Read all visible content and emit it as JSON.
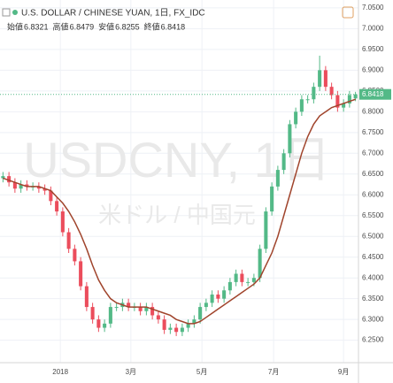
{
  "chart_data": {
    "type": "candlestick",
    "title": "U.S. DOLLAR / CHINESE YUAN, 1日, FX_IDC",
    "ohlc_labels": [
      "始値",
      "高値",
      "安値",
      "終値"
    ],
    "watermark": "USDCNY, 1日",
    "watermark_sub": "米ドル / 中国元",
    "up_color": "#53b987",
    "down_color": "#eb4d5c",
    "x": [
      0,
      1,
      2,
      3,
      4,
      5,
      6,
      7,
      8,
      9,
      10,
      11,
      12,
      13,
      14,
      15,
      16,
      17,
      18,
      19,
      20,
      21,
      22,
      23,
      24,
      25,
      26,
      27,
      28,
      29,
      30,
      31,
      32,
      33,
      34,
      35,
      36,
      37,
      38,
      39,
      40,
      41,
      42,
      43,
      44,
      45,
      46,
      47,
      48,
      49,
      50,
      51,
      52,
      53,
      54,
      55,
      56,
      57,
      58,
      59
    ],
    "open": [
      6.64,
      6.645,
      6.63,
      6.615,
      6.625,
      6.62,
      6.62,
      6.615,
      6.61,
      6.585,
      6.56,
      6.51,
      6.47,
      6.44,
      6.38,
      6.33,
      6.3,
      6.28,
      6.29,
      6.33,
      6.33,
      6.34,
      6.33,
      6.33,
      6.32,
      6.33,
      6.31,
      6.3,
      6.275,
      6.28,
      6.27,
      6.28,
      6.29,
      6.3,
      6.33,
      6.34,
      6.36,
      6.35,
      6.37,
      6.39,
      6.41,
      6.39,
      6.39,
      6.4,
      6.47,
      6.56,
      6.62,
      6.66,
      6.7,
      6.77,
      6.8,
      6.83,
      6.83,
      6.86,
      6.9,
      6.86,
      6.84,
      6.81,
      6.82,
      6.8321
    ],
    "high": [
      6.655,
      6.655,
      6.64,
      6.635,
      6.635,
      6.63,
      6.63,
      6.625,
      6.62,
      6.595,
      6.57,
      6.52,
      6.48,
      6.45,
      6.39,
      6.34,
      6.31,
      6.3,
      6.34,
      6.34,
      6.35,
      6.35,
      6.34,
      6.34,
      6.34,
      6.34,
      6.32,
      6.31,
      6.29,
      6.29,
      6.29,
      6.3,
      6.31,
      6.34,
      6.35,
      6.37,
      6.37,
      6.38,
      6.4,
      6.42,
      6.42,
      6.4,
      6.41,
      6.48,
      6.57,
      6.63,
      6.67,
      6.71,
      6.78,
      6.81,
      6.84,
      6.84,
      6.87,
      6.935,
      6.91,
      6.87,
      6.85,
      6.83,
      6.85,
      6.8479
    ],
    "low": [
      6.63,
      6.62,
      6.605,
      6.605,
      6.61,
      6.61,
      6.605,
      6.6,
      6.575,
      6.55,
      6.5,
      6.46,
      6.43,
      6.37,
      6.32,
      6.29,
      6.27,
      6.27,
      6.28,
      6.32,
      6.32,
      6.32,
      6.32,
      6.31,
      6.31,
      6.3,
      6.29,
      6.265,
      6.265,
      6.26,
      6.26,
      6.27,
      6.28,
      6.29,
      6.32,
      6.33,
      6.34,
      6.34,
      6.36,
      6.38,
      6.38,
      6.38,
      6.38,
      6.39,
      6.46,
      6.55,
      6.61,
      6.65,
      6.69,
      6.76,
      6.79,
      6.82,
      6.82,
      6.85,
      6.85,
      6.83,
      6.8,
      6.8,
      6.81,
      6.8255
    ],
    "close": [
      6.645,
      6.63,
      6.615,
      6.625,
      6.62,
      6.62,
      6.615,
      6.61,
      6.585,
      6.56,
      6.51,
      6.47,
      6.44,
      6.38,
      6.33,
      6.3,
      6.28,
      6.29,
      6.33,
      6.33,
      6.34,
      6.33,
      6.33,
      6.32,
      6.33,
      6.31,
      6.3,
      6.275,
      6.28,
      6.27,
      6.28,
      6.29,
      6.3,
      6.33,
      6.34,
      6.36,
      6.35,
      6.37,
      6.39,
      6.41,
      6.39,
      6.39,
      6.4,
      6.47,
      6.56,
      6.62,
      6.66,
      6.7,
      6.77,
      6.8,
      6.83,
      6.83,
      6.86,
      6.9,
      6.86,
      6.84,
      6.81,
      6.82,
      6.84,
      6.8418
    ],
    "ma": {
      "color": "#a0442c",
      "values": [
        6.64,
        6.635,
        6.63,
        6.625,
        6.62,
        6.62,
        6.62,
        6.615,
        6.61,
        6.595,
        6.58,
        6.56,
        6.535,
        6.505,
        6.47,
        6.43,
        6.395,
        6.37,
        6.35,
        6.34,
        6.335,
        6.33,
        6.33,
        6.33,
        6.33,
        6.325,
        6.32,
        6.315,
        6.31,
        6.3,
        6.295,
        6.29,
        6.29,
        6.295,
        6.305,
        6.315,
        6.325,
        6.335,
        6.345,
        6.355,
        6.365,
        6.375,
        6.385,
        6.4,
        6.43,
        6.46,
        6.5,
        6.55,
        6.6,
        6.65,
        6.7,
        6.74,
        6.77,
        6.79,
        6.8,
        6.81,
        6.815,
        6.82,
        6.825,
        6.83
      ]
    },
    "xlim": [
      -0.5,
      59.5
    ],
    "xticks": [
      {
        "value": 9.6,
        "label": "2018"
      },
      {
        "value": 21.4,
        "label": "3月"
      },
      {
        "value": 33.3,
        "label": "5月"
      },
      {
        "value": 45.3,
        "label": "7月"
      },
      {
        "value": 57.0,
        "label": "9月"
      }
    ],
    "ylim": [
      6.196,
      7.069
    ],
    "yticks": [
      {
        "value": 6.25,
        "label": "6.2500"
      },
      {
        "value": 6.3,
        "label": "6.3000"
      },
      {
        "value": 6.35,
        "label": "6.3500"
      },
      {
        "value": 6.4,
        "label": "6.4000"
      },
      {
        "value": 6.45,
        "label": "6.4500"
      },
      {
        "value": 6.5,
        "label": "6.5000"
      },
      {
        "value": 6.55,
        "label": "6.5500"
      },
      {
        "value": 6.6,
        "label": "6.6000"
      },
      {
        "value": 6.65,
        "label": "6.6500"
      },
      {
        "value": 6.7,
        "label": "6.7000"
      },
      {
        "value": 6.75,
        "label": "6.7500"
      },
      {
        "value": 6.8,
        "label": "6.8000"
      },
      {
        "value": 6.85,
        "label": "6.8500"
      },
      {
        "value": 6.9,
        "label": "6.9000"
      },
      {
        "value": 6.95,
        "label": "6.9500"
      },
      {
        "value": 7.0,
        "label": "7.0000"
      },
      {
        "value": 7.05,
        "label": "7.0500"
      }
    ],
    "grid": true
  }
}
